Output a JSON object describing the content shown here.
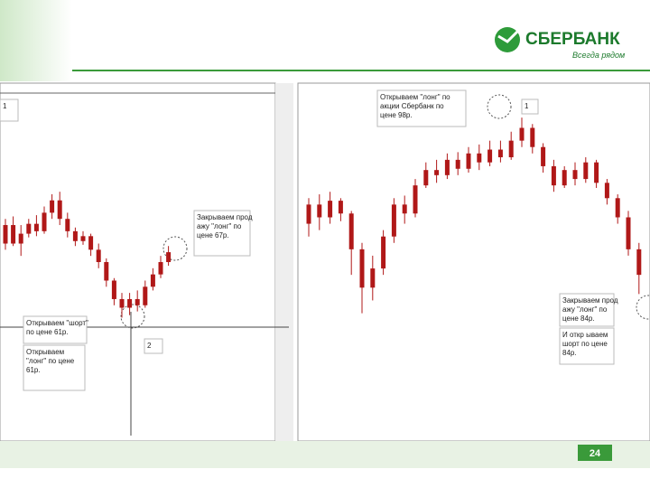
{
  "header": {
    "brand": "СБЕРБАНК",
    "slogan": "Всегда рядом"
  },
  "page_number": "24",
  "charts": [
    {
      "ylim": [
        51,
        80
      ],
      "color": "#b01818",
      "candles": [
        [
          67,
          68.5,
          69,
          66.5
        ],
        [
          68.5,
          67,
          69.2,
          66.8
        ],
        [
          67,
          67.8,
          68.5,
          66
        ],
        [
          67.8,
          68.6,
          69,
          67.5
        ],
        [
          68.6,
          68,
          69.3,
          67.6
        ],
        [
          68,
          69.5,
          70,
          67.8
        ],
        [
          69.5,
          70.5,
          71,
          69
        ],
        [
          70.5,
          69,
          71.2,
          68.5
        ],
        [
          69,
          68,
          69.5,
          67.5
        ],
        [
          68,
          67.2,
          68.3,
          66.8
        ],
        [
          67.2,
          67.6,
          68,
          66.9
        ],
        [
          67.6,
          66.5,
          67.8,
          66
        ],
        [
          66.5,
          65.5,
          67,
          65
        ],
        [
          65.5,
          64,
          65.8,
          63.5
        ],
        [
          64,
          62.5,
          64.2,
          62
        ],
        [
          62.5,
          61.8,
          63,
          61
        ],
        [
          61.8,
          62.5,
          63,
          61.2
        ],
        [
          62.5,
          62,
          63.2,
          61.5
        ],
        [
          62,
          63.5,
          64,
          61.8
        ],
        [
          63.5,
          64.5,
          65,
          63.2
        ],
        [
          64.5,
          65.5,
          66,
          64.2
        ],
        [
          65.5,
          66.3,
          66.8,
          65.2
        ]
      ],
      "annotations": [
        {
          "lines": [
            "Закрываем прод",
            "ажу \"лонг\" по",
            "цене 67р."
          ]
        },
        {
          "lines": [
            "Открываем \"шорт\"",
            "по цене 61р."
          ]
        },
        {
          "lines": [
            "Открываем",
            "\"лонг\" по цене",
            "61р."
          ]
        },
        {
          "lines": [
            "1"
          ]
        },
        {
          "lines": [
            "2"
          ]
        }
      ]
    },
    {
      "ylim": [
        73,
        101
      ],
      "color": "#b01818",
      "candles": [
        [
          90,
          91.5,
          92,
          89
        ],
        [
          91.5,
          90.5,
          92.3,
          89.5
        ],
        [
          90.5,
          91.8,
          92.5,
          90
        ],
        [
          91.8,
          90.8,
          92,
          90.2
        ],
        [
          90.8,
          88,
          91,
          86
        ],
        [
          88,
          85,
          88.5,
          83
        ],
        [
          85,
          86.5,
          87.5,
          84
        ],
        [
          86.5,
          89,
          89.5,
          86
        ],
        [
          89,
          91.5,
          92,
          88.5
        ],
        [
          91.5,
          90.8,
          92.2,
          90
        ],
        [
          90.8,
          93,
          93.5,
          90.5
        ],
        [
          93,
          94.2,
          94.8,
          92.8
        ],
        [
          94.2,
          93.8,
          95,
          93.2
        ],
        [
          93.8,
          95,
          95.5,
          93.5
        ],
        [
          95,
          94.3,
          95.6,
          93.8
        ],
        [
          94.3,
          95.5,
          96,
          94
        ],
        [
          95.5,
          94.8,
          96.2,
          94.2
        ],
        [
          94.8,
          95.8,
          96.5,
          94.5
        ],
        [
          95.8,
          95.2,
          96.5,
          94.8
        ],
        [
          95.2,
          96.5,
          97.2,
          95
        ],
        [
          96.5,
          97.5,
          98.3,
          96
        ],
        [
          97.5,
          96,
          97.8,
          95.5
        ],
        [
          96,
          94.5,
          96.3,
          94
        ],
        [
          94.5,
          93,
          95,
          92.5
        ],
        [
          93,
          94.2,
          94.5,
          92.8
        ],
        [
          94.2,
          93.5,
          94.8,
          93
        ],
        [
          93.5,
          94.8,
          95.2,
          93.2
        ],
        [
          94.8,
          93.2,
          95,
          92.8
        ],
        [
          93.2,
          92,
          93.5,
          91.5
        ],
        [
          92,
          90.5,
          92.3,
          90
        ],
        [
          90.5,
          88,
          91,
          87.5
        ],
        [
          88,
          86,
          88.5,
          84.5
        ]
      ],
      "annotations": [
        {
          "lines": [
            "Открываем \"лонг\" по",
            "акции Сбербанк по",
            "цене 98р."
          ]
        },
        {
          "lines": [
            "1"
          ]
        },
        {
          "lines": [
            "Закрываем прод",
            "ажу \"лонг\" по",
            "цене 84р."
          ]
        },
        {
          "lines": [
            "И откр ываем",
            "шорт по цене",
            "84р."
          ]
        }
      ]
    }
  ]
}
